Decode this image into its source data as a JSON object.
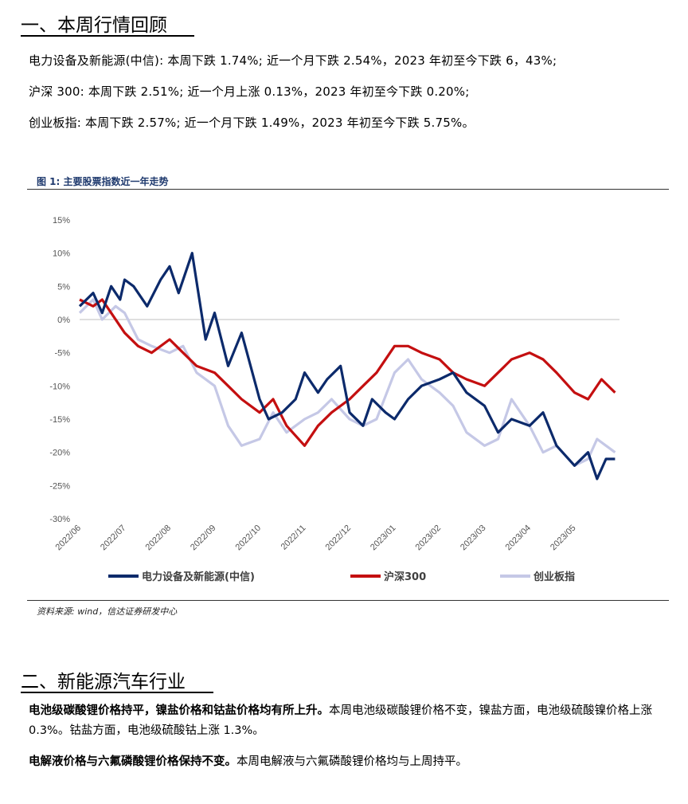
{
  "section1": {
    "title": "一、本周行情回顾",
    "lines": [
      "电力设备及新能源(中信): 本周下跌 1.74%; 近一个月下跌 2.54%，2023 年初至今下跌 6，43%;",
      "沪深 300:  本周下跌 2.51%;  近一个月上涨 0.13%，2023 年初至今下跌 0.20%;",
      "创业板指:  本周下跌 2.57%;  近一个月下跌 1.49%，2023 年初至今下跌 5.75%。"
    ]
  },
  "figure": {
    "caption": "图 1:  主要股票指数近一年走势",
    "source": "资料来源: wind，信达证券研发中心"
  },
  "chart_data": {
    "type": "line",
    "title": "",
    "xlabel": "",
    "ylabel": "",
    "ylim": [
      -30,
      15
    ],
    "y_ticks": [
      "15%",
      "10%",
      "5%",
      "0%",
      "-5%",
      "-10%",
      "-15%",
      "-20%",
      "-25%",
      "-30%"
    ],
    "x_ticks": [
      "2022/06",
      "2022/07",
      "2022/08",
      "2022/09",
      "2022/10",
      "2022/11",
      "2022/12",
      "2023/01",
      "2023/02",
      "2023/03",
      "2023/04",
      "2023/05"
    ],
    "grid": false,
    "legend_position": "bottom",
    "series": [
      {
        "name": "电力设备及新能源(中信)",
        "color": "#0c2a6b",
        "x": [
          0,
          0.3,
          0.5,
          0.7,
          0.9,
          1.0,
          1.2,
          1.5,
          1.8,
          2.0,
          2.2,
          2.5,
          2.8,
          3.0,
          3.3,
          3.6,
          4.0,
          4.2,
          4.5,
          4.8,
          5.0,
          5.3,
          5.5,
          5.8,
          6.0,
          6.3,
          6.5,
          6.8,
          7.0,
          7.3,
          7.6,
          8.0,
          8.3,
          8.6,
          9.0,
          9.3,
          9.6,
          10.0,
          10.3,
          10.6,
          11.0,
          11.3,
          11.5,
          11.7,
          11.9
        ],
        "values": [
          2,
          4,
          1,
          5,
          3,
          6,
          5,
          2,
          6,
          8,
          4,
          10,
          -3,
          1,
          -7,
          -2,
          -12,
          -15,
          -14,
          -12,
          -8,
          -11,
          -9,
          -7,
          -14,
          -16,
          -12,
          -14,
          -15,
          -12,
          -10,
          -9,
          -8,
          -11,
          -13,
          -17,
          -15,
          -16,
          -14,
          -19,
          -22,
          -20,
          -24,
          -21,
          -21
        ]
      },
      {
        "name": "沪深300",
        "color": "#c40f10",
        "x": [
          0,
          0.3,
          0.5,
          0.7,
          1.0,
          1.3,
          1.6,
          2.0,
          2.3,
          2.6,
          3.0,
          3.3,
          3.6,
          4.0,
          4.3,
          4.6,
          5.0,
          5.3,
          5.6,
          6.0,
          6.3,
          6.6,
          7.0,
          7.3,
          7.6,
          8.0,
          8.3,
          8.6,
          9.0,
          9.3,
          9.6,
          10.0,
          10.3,
          10.6,
          11.0,
          11.3,
          11.6,
          11.9
        ],
        "values": [
          3,
          2,
          3,
          1,
          -2,
          -4,
          -5,
          -3,
          -5,
          -7,
          -8,
          -10,
          -12,
          -14,
          -12,
          -16,
          -19,
          -16,
          -14,
          -12,
          -10,
          -8,
          -4,
          -4,
          -5,
          -6,
          -8,
          -9,
          -10,
          -8,
          -6,
          -5,
          -6,
          -8,
          -11,
          -12,
          -9,
          -11
        ]
      },
      {
        "name": "创业板指",
        "color": "#c5c8e6",
        "x": [
          0,
          0.3,
          0.5,
          0.8,
          1.0,
          1.3,
          1.6,
          2.0,
          2.3,
          2.6,
          3.0,
          3.3,
          3.6,
          4.0,
          4.3,
          4.6,
          5.0,
          5.3,
          5.6,
          6.0,
          6.3,
          6.6,
          7.0,
          7.3,
          7.6,
          8.0,
          8.3,
          8.6,
          9.0,
          9.3,
          9.6,
          10.0,
          10.3,
          10.6,
          11.0,
          11.3,
          11.5,
          11.7,
          11.9
        ],
        "values": [
          1,
          3,
          0,
          2,
          1,
          -3,
          -4,
          -5,
          -4,
          -8,
          -10,
          -16,
          -19,
          -18,
          -14,
          -17,
          -15,
          -14,
          -12,
          -15,
          -16,
          -15,
          -8,
          -6,
          -9,
          -11,
          -13,
          -17,
          -19,
          -18,
          -12,
          -16,
          -20,
          -19,
          -22,
          -21,
          -18,
          -19,
          -20
        ]
      }
    ]
  },
  "section2": {
    "title": "二、新能源汽车行业",
    "p1_bold": "电池级碳酸锂价格持平，镍盐价格和钴盐价格均有所上升。",
    "p1_text": "本周电池级碳酸锂价格不变，镍盐方面，电池级硫酸镍价格上涨 0.3%。钴盐方面，电池级硫酸钴上涨 1.3%。",
    "p2_bold": "电解液价格与六氟磷酸锂价格保持不变。",
    "p2_text": "本周电解液与六氟磷酸锂价格均与上周持平。"
  }
}
